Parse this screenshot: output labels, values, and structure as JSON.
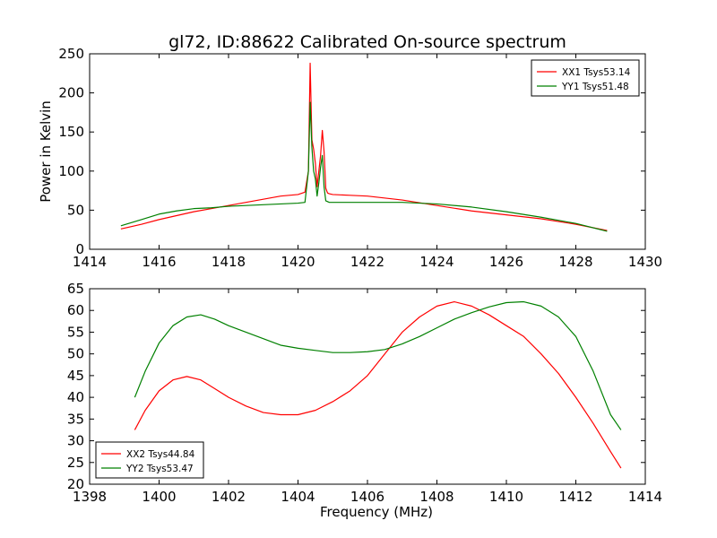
{
  "figure_title": "gl72, ID:88622 Calibrated On-source spectrum",
  "colors": {
    "red": "#ff0000",
    "green": "#008000",
    "axis": "#000000",
    "background": "#ffffff"
  },
  "chart_data": [
    {
      "type": "line",
      "title": "gl72, ID:88622 Calibrated On-source spectrum",
      "xlabel": "",
      "ylabel": "Power in Kelvin",
      "xlim": [
        1414,
        1430
      ],
      "ylim": [
        0,
        250
      ],
      "xticks": [
        1414,
        1416,
        1418,
        1420,
        1422,
        1424,
        1426,
        1428,
        1430
      ],
      "yticks": [
        0,
        50,
        100,
        150,
        200,
        250
      ],
      "grid": false,
      "legend_position": "top-right",
      "series": [
        {
          "name": "XX1 Tsys53.14",
          "color": "#ff0000",
          "x": [
            1414.9,
            1415.5,
            1416.0,
            1416.5,
            1417.0,
            1417.5,
            1418.0,
            1418.5,
            1419.0,
            1419.5,
            1420.0,
            1420.2,
            1420.3,
            1420.35,
            1420.4,
            1420.45,
            1420.5,
            1420.55,
            1420.6,
            1420.65,
            1420.7,
            1420.75,
            1420.8,
            1420.85,
            1420.9,
            1421.0,
            1421.5,
            1422.0,
            1423.0,
            1424.0,
            1425.0,
            1426.0,
            1427.0,
            1428.0,
            1428.9
          ],
          "y": [
            26,
            32,
            38,
            43,
            48,
            52,
            56,
            60,
            64,
            68,
            70,
            73,
            100,
            238,
            140,
            128,
            110,
            80,
            100,
            120,
            152,
            125,
            78,
            72,
            71,
            70,
            69,
            68,
            63,
            56,
            49,
            44,
            39,
            32,
            24
          ]
        },
        {
          "name": "YY1 Tsys51.48",
          "color": "#008000",
          "x": [
            1414.9,
            1415.5,
            1416.0,
            1416.5,
            1417.0,
            1417.5,
            1418.0,
            1418.5,
            1419.0,
            1419.5,
            1420.0,
            1420.2,
            1420.3,
            1420.35,
            1420.4,
            1420.45,
            1420.5,
            1420.55,
            1420.6,
            1420.65,
            1420.7,
            1420.75,
            1420.8,
            1420.85,
            1420.9,
            1421.0,
            1421.5,
            1422.0,
            1423.0,
            1424.0,
            1425.0,
            1426.0,
            1427.0,
            1428.0,
            1428.9
          ],
          "y": [
            30,
            38,
            45,
            49,
            52,
            53,
            55,
            56,
            57,
            58,
            59,
            60,
            100,
            188,
            130,
            100,
            90,
            68,
            85,
            105,
            120,
            80,
            62,
            61,
            60,
            60,
            60,
            60,
            60,
            58,
            54,
            48,
            41,
            33,
            23
          ]
        }
      ]
    },
    {
      "type": "line",
      "title": "",
      "xlabel": "Frequency (MHz)",
      "ylabel": "",
      "xlim": [
        1398,
        1414
      ],
      "ylim": [
        20,
        65
      ],
      "xticks": [
        1398,
        1400,
        1402,
        1404,
        1406,
        1408,
        1410,
        1412,
        1414
      ],
      "yticks": [
        20,
        25,
        30,
        35,
        40,
        45,
        50,
        55,
        60,
        65
      ],
      "grid": false,
      "legend_position": "bottom-left",
      "series": [
        {
          "name": "XX2 Tsys44.84",
          "color": "#ff0000",
          "x": [
            1399.3,
            1399.6,
            1400.0,
            1400.4,
            1400.8,
            1401.2,
            1401.6,
            1402.0,
            1402.5,
            1403.0,
            1403.5,
            1404.0,
            1404.5,
            1405.0,
            1405.5,
            1406.0,
            1406.5,
            1407.0,
            1407.5,
            1408.0,
            1408.5,
            1409.0,
            1409.5,
            1410.0,
            1410.5,
            1411.0,
            1411.5,
            1412.0,
            1412.5,
            1413.0,
            1413.3
          ],
          "y": [
            32.5,
            37,
            41.5,
            44,
            44.8,
            44,
            42,
            40,
            38,
            36.5,
            36,
            36,
            37,
            39,
            41.5,
            45,
            50,
            55,
            58.5,
            61,
            62,
            61,
            59,
            56.5,
            54,
            50,
            45.5,
            40,
            34,
            27.5,
            23.7
          ]
        },
        {
          "name": "YY2 Tsys53.47",
          "color": "#008000",
          "x": [
            1399.3,
            1399.6,
            1400.0,
            1400.4,
            1400.8,
            1401.2,
            1401.6,
            1402.0,
            1402.5,
            1403.0,
            1403.5,
            1404.0,
            1404.5,
            1405.0,
            1405.5,
            1406.0,
            1406.5,
            1407.0,
            1407.5,
            1408.0,
            1408.5,
            1409.0,
            1409.5,
            1410.0,
            1410.5,
            1411.0,
            1411.5,
            1412.0,
            1412.5,
            1413.0,
            1413.3
          ],
          "y": [
            40,
            46,
            52.5,
            56.5,
            58.5,
            59,
            58,
            56.5,
            55,
            53.5,
            52,
            51.3,
            50.8,
            50.3,
            50.3,
            50.5,
            51,
            52.3,
            54,
            56,
            58,
            59.5,
            60.8,
            61.8,
            62,
            61,
            58.5,
            54,
            46,
            36,
            32.5
          ]
        }
      ]
    }
  ]
}
